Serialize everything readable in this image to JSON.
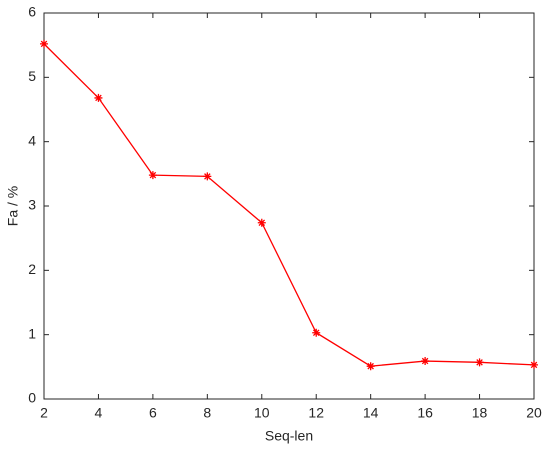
{
  "chart_data": {
    "type": "line",
    "xlabel": "Seq-len",
    "ylabel": "Fa / %",
    "x": [
      2,
      4,
      6,
      8,
      10,
      12,
      14,
      16,
      18,
      20
    ],
    "series": [
      {
        "color": "#ff0000",
        "values": [
          5.52,
          4.68,
          3.48,
          3.46,
          2.74,
          1.03,
          0.51,
          0.59,
          0.57,
          0.53
        ]
      }
    ],
    "xlim": [
      2,
      20
    ],
    "xticks": [
      2,
      4,
      6,
      8,
      10,
      12,
      14,
      16,
      18,
      20
    ],
    "ylim": [
      0,
      6
    ],
    "yticks": [
      0,
      1,
      2,
      3,
      4,
      5,
      6
    ],
    "grid": false
  }
}
